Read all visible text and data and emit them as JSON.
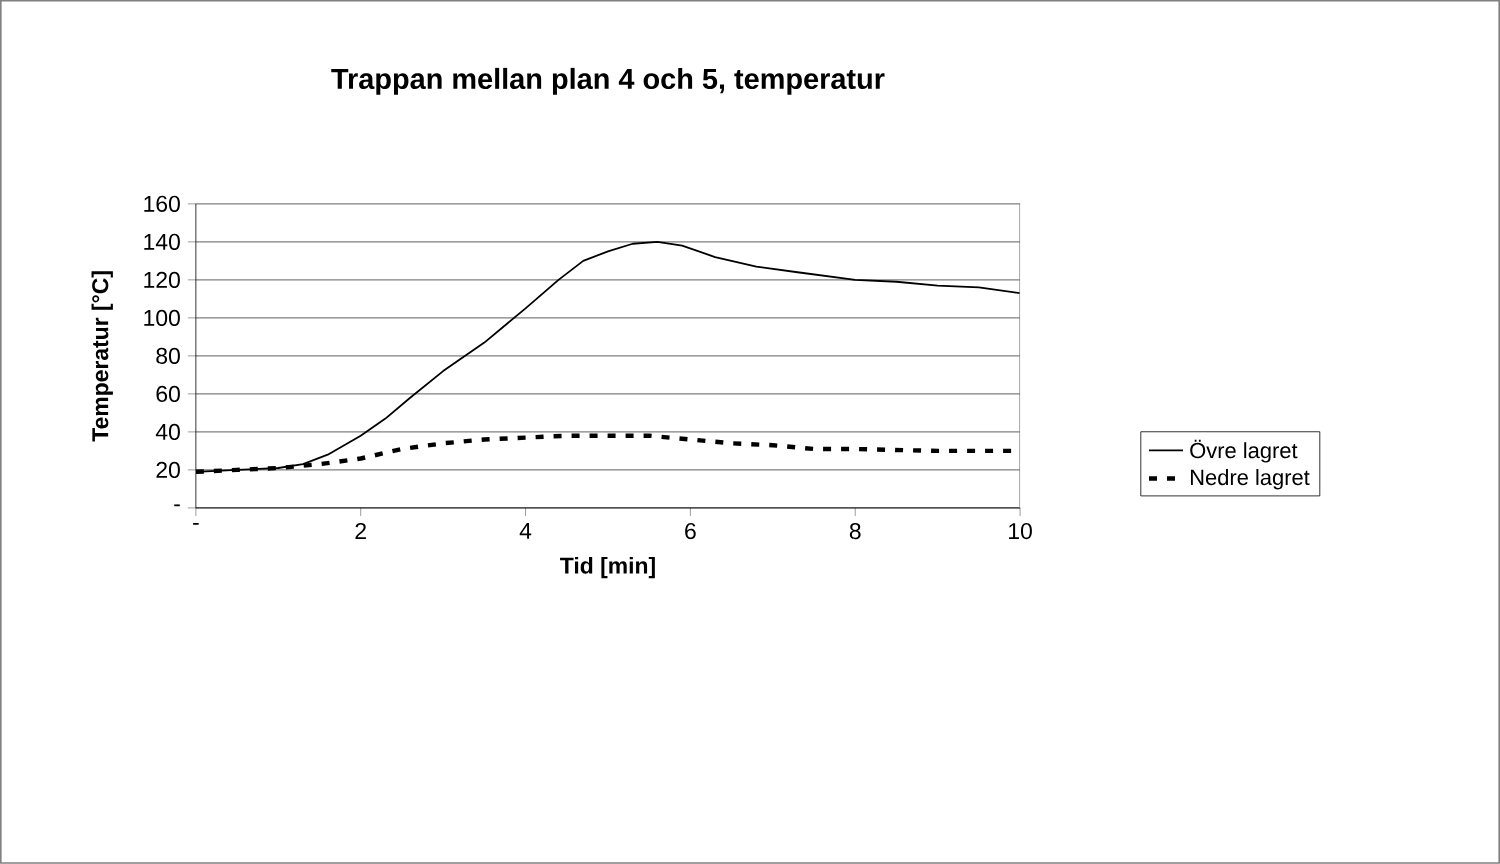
{
  "chart_data": {
    "type": "line",
    "title": "Trappan mellan plan 4 och 5, temperatur",
    "xlabel": "Tid [min]",
    "ylabel": "Temperatur [°C]",
    "xlim": [
      0,
      10
    ],
    "ylim": [
      0,
      160
    ],
    "xticks": [
      {
        "value": 0,
        "label": "-"
      },
      2,
      4,
      6,
      8,
      10
    ],
    "yticks": [
      {
        "value": 0,
        "label": "-"
      },
      20,
      40,
      60,
      80,
      100,
      120,
      140,
      160
    ],
    "grid": "y",
    "legend": "right",
    "series": [
      {
        "name": "Övre lagret",
        "color": "#000000",
        "line_style": "solid",
        "x": [
          0,
          0.5,
          1,
          1.3,
          1.6,
          2,
          2.3,
          2.6,
          3,
          3.5,
          4,
          4.4,
          4.7,
          5,
          5.3,
          5.6,
          5.9,
          6.3,
          6.8,
          7.3,
          8,
          8.5,
          9,
          9.5,
          10
        ],
        "values": [
          19,
          20,
          21,
          23,
          28,
          38,
          47,
          58,
          72,
          87,
          105,
          120,
          130,
          135,
          139,
          140,
          138,
          132,
          127,
          124,
          120,
          119,
          117,
          116,
          113
        ]
      },
      {
        "name": "Nedre lagret",
        "color": "#000000",
        "line_style": "dashed",
        "x": [
          0,
          0.5,
          1,
          1.5,
          2,
          2.5,
          3,
          3.5,
          4,
          4.5,
          5,
          5.5,
          6,
          6.5,
          7,
          7.5,
          8,
          9,
          10
        ],
        "values": [
          19,
          20,
          21,
          23,
          26,
          31,
          34,
          36,
          37,
          38,
          38,
          38,
          36,
          34,
          33,
          31,
          31,
          30,
          30
        ]
      }
    ]
  }
}
